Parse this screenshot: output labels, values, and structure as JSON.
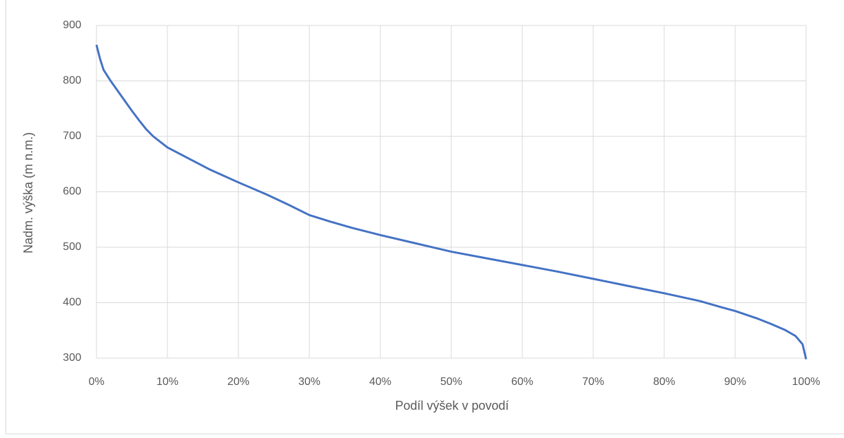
{
  "chart_data": {
    "type": "line",
    "x_label": "Podíl výšek v povodí",
    "y_label": "Nadm. výška (m n.m.)",
    "xlim": [
      0,
      100
    ],
    "ylim": [
      300,
      900
    ],
    "xticks": [
      {
        "value": 0,
        "label": "0%"
      },
      {
        "value": 10,
        "label": "10%"
      },
      {
        "value": 20,
        "label": "20%"
      },
      {
        "value": 30,
        "label": "30%"
      },
      {
        "value": 40,
        "label": "40%"
      },
      {
        "value": 50,
        "label": "50%"
      },
      {
        "value": 60,
        "label": "60%"
      },
      {
        "value": 70,
        "label": "70%"
      },
      {
        "value": 80,
        "label": "80%"
      },
      {
        "value": 90,
        "label": "90%"
      },
      {
        "value": 100,
        "label": "100%"
      }
    ],
    "yticks": [
      300,
      400,
      500,
      600,
      700,
      800,
      900
    ],
    "grid": true,
    "x": [
      0,
      0.5,
      1,
      2,
      3,
      4,
      5,
      6,
      7,
      8,
      10,
      13,
      16,
      20,
      24,
      27,
      30,
      33,
      36,
      40,
      45,
      50,
      55,
      60,
      65,
      70,
      75,
      80,
      85,
      88,
      90,
      93,
      95,
      97,
      98.5,
      99.5,
      100
    ],
    "series": [
      {
        "color": "#4472c4",
        "values": [
          865,
          840,
          820,
          800,
          782,
          764,
          746,
          729,
          713,
          700,
          680,
          660,
          640,
          617,
          595,
          577,
          558,
          546,
          535,
          522,
          507,
          492,
          480,
          468,
          456,
          443,
          430,
          417,
          403,
          392,
          385,
          372,
          362,
          351,
          340,
          325,
          298
        ]
      }
    ]
  }
}
